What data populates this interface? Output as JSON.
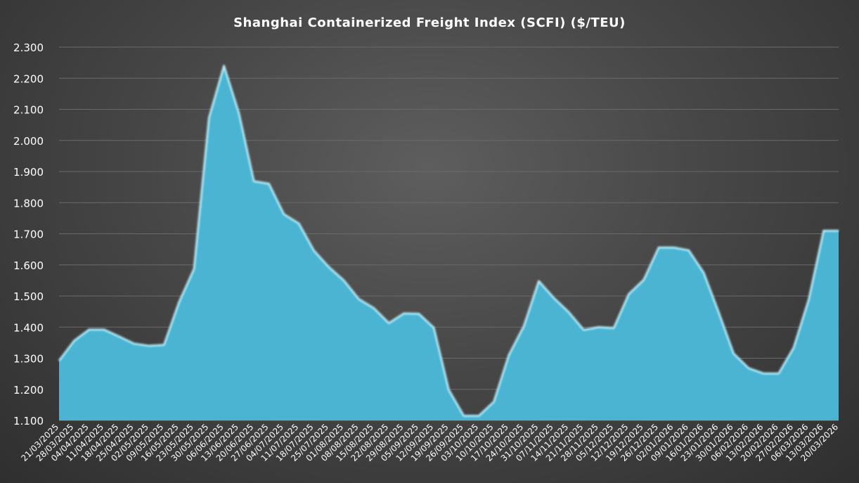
{
  "chart_data": {
    "type": "area",
    "title": "Shanghai Containerized Freight Index (SCFI) ($/TEU)",
    "xlabel": "",
    "ylabel": "",
    "ylim": [
      1100,
      2300
    ],
    "yticks": [
      1100,
      1200,
      1300,
      1400,
      1500,
      1600,
      1700,
      1800,
      1900,
      2000,
      2100,
      2200,
      2300
    ],
    "ytick_labels": [
      "1.100",
      "1.200",
      "1.300",
      "1.400",
      "1.500",
      "1.600",
      "1.700",
      "1.800",
      "1.900",
      "2.000",
      "2.100",
      "2.200",
      "2.300"
    ],
    "grid": true,
    "legend": "none",
    "fill_color": "#4bb4d2",
    "edge_color": "#bff0fb",
    "categories": [
      "21/03/2025",
      "28/03/2025",
      "04/04/2025",
      "11/04/2025",
      "18/04/2025",
      "25/04/2025",
      "02/05/2025",
      "09/05/2025",
      "16/05/2025",
      "23/05/2025",
      "30/05/2025",
      "06/06/2025",
      "13/06/2025",
      "20/06/2025",
      "27/06/2025",
      "04/07/2025",
      "11/07/2025",
      "18/07/2025",
      "25/07/2025",
      "01/08/2025",
      "08/08/2025",
      "15/08/2025",
      "22/08/2025",
      "29/08/2025",
      "05/09/2025",
      "12/09/2025",
      "19/09/2025",
      "26/09/2025",
      "03/10/2025",
      "10/10/2025",
      "17/10/2025",
      "24/10/2025",
      "31/10/2025",
      "07/11/2025",
      "14/11/2025",
      "21/11/2025",
      "28/11/2025",
      "05/12/2025",
      "12/12/2025",
      "19/12/2025",
      "26/12/2025",
      "02/01/2026",
      "09/01/2026",
      "16/01/2026",
      "23/01/2026",
      "30/01/2026",
      "06/02/2026",
      "13/02/2026",
      "20/02/2026",
      "27/02/2026",
      "06/03/2026",
      "13/03/2026",
      "20/03/2026"
    ],
    "series": [
      {
        "values": [
          1292,
          1356,
          1392,
          1392,
          1370,
          1347,
          1340,
          1343,
          1480,
          1587,
          2073,
          2240,
          2088,
          1869,
          1861,
          1763,
          1733,
          1646,
          1593,
          1550,
          1490,
          1461,
          1413,
          1444,
          1443,
          1398,
          1198,
          1115,
          1115,
          1160,
          1310,
          1403,
          1548,
          1494,
          1448,
          1391,
          1400,
          1397,
          1506,
          1552,
          1656,
          1656,
          1647,
          1575,
          1448,
          1315,
          1268,
          1251,
          1251,
          1334,
          1488,
          1710,
          1710
        ]
      }
    ]
  }
}
